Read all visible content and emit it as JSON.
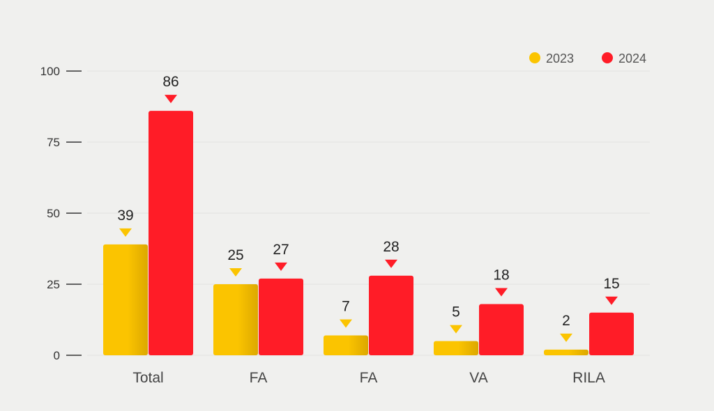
{
  "chart_data": {
    "type": "bar",
    "categories": [
      "Total",
      "FA",
      "FA",
      "VA",
      "RILA"
    ],
    "series": [
      {
        "name": "2023",
        "values": [
          39,
          25,
          7,
          5,
          2
        ],
        "labels": [
          "39",
          "25",
          "7",
          "5",
          "2"
        ]
      },
      {
        "name": "2024",
        "values": [
          86,
          27,
          28,
          18,
          15
        ],
        "labels": [
          "86",
          "27",
          "28",
          "18",
          "15"
        ]
      }
    ],
    "yticks": [
      0,
      25,
      50,
      75,
      100
    ],
    "ylim": [
      0,
      100
    ],
    "grid": true,
    "legend_position": "top-right"
  },
  "colors": {
    "series_2023": "#fbc400",
    "series_2023_dark": "#e0ac00",
    "series_2024": "#ff1c27",
    "background": "#f0f0ee",
    "grid": "#e2e2e0"
  }
}
